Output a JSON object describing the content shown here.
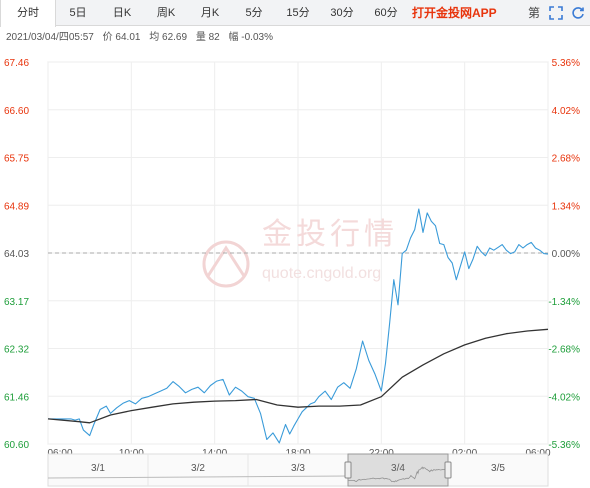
{
  "tabs": [
    {
      "label": "分时",
      "active": true
    },
    {
      "label": "5日"
    },
    {
      "label": "日K"
    },
    {
      "label": "周K"
    },
    {
      "label": "月K"
    },
    {
      "label": "5分"
    },
    {
      "label": "15分"
    },
    {
      "label": "30分"
    },
    {
      "label": "60分"
    }
  ],
  "app_link": "打开金投网APP",
  "toolbar": {
    "fn_label": "第"
  },
  "info": {
    "datetime": "2021/03/04/四05:57",
    "price": "价 64.01",
    "avg": "均 62.69",
    "volume": "量 82",
    "change": "幅 -0.03%"
  },
  "watermark": {
    "cn": "金投行情",
    "en": "quote.cngold.org"
  },
  "colors": {
    "up": "#e8340c",
    "down": "#1e9e3a",
    "price_line": "#3a9bd9",
    "avg_line": "#333333",
    "ref_line": "#aaaaaa"
  },
  "chart_data": {
    "type": "line",
    "y_ticks_left": [
      "67.46",
      "66.60",
      "65.75",
      "64.89",
      "64.03",
      "63.17",
      "62.32",
      "61.46",
      "60.60"
    ],
    "y_ticks_right": [
      "5.36%",
      "4.02%",
      "2.68%",
      "1.34%",
      "0.00%",
      "-1.34%",
      "-2.68%",
      "-4.02%",
      "-5.36%"
    ],
    "ylim": [
      60.6,
      67.46
    ],
    "reference_price": 64.03,
    "x_ticks": [
      "06:00",
      "10:00",
      "14:00",
      "18:00",
      "22:00",
      "02:00",
      "06:00"
    ],
    "x_tick_hours": [
      0,
      4,
      8,
      12,
      16,
      20,
      24
    ],
    "session_start": "06:00",
    "series": [
      {
        "role": "price",
        "x": [
          0,
          0.4,
          0.8,
          1.1,
          1.3,
          1.5,
          1.7,
          2.0,
          2.2,
          2.5,
          2.8,
          3.0,
          3.3,
          3.6,
          3.9,
          4.2,
          4.5,
          4.8,
          5.1,
          5.4,
          5.7,
          6.0,
          6.3,
          6.6,
          6.9,
          7.2,
          7.5,
          7.8,
          8.1,
          8.4,
          8.7,
          9.0,
          9.3,
          9.6,
          9.9,
          10.2,
          10.5,
          10.8,
          11.1,
          11.4,
          11.6,
          11.8,
          12.0,
          12.2,
          12.4,
          12.6,
          12.8,
          13.0,
          13.3,
          13.6,
          13.9,
          14.2,
          14.5,
          14.8,
          15.1,
          15.4,
          15.7,
          16.0,
          16.2,
          16.4,
          16.6,
          16.8,
          17.0,
          17.2,
          17.4,
          17.6,
          17.8,
          18.0,
          18.2,
          18.4,
          18.6,
          18.8,
          19.0,
          19.2,
          19.4,
          19.6,
          19.8,
          20.0,
          20.2,
          20.4,
          20.6,
          20.8,
          21.0,
          21.2,
          21.4,
          21.6,
          21.8,
          22.0,
          22.2,
          22.4,
          22.6,
          22.8,
          23.0,
          23.2,
          23.4,
          23.6,
          23.8,
          24.0
        ],
        "values": [
          61.05,
          61.05,
          61.05,
          61.05,
          61.03,
          61.05,
          60.85,
          60.75,
          60.95,
          61.22,
          61.28,
          61.15,
          61.25,
          61.33,
          61.38,
          61.32,
          61.42,
          61.45,
          61.5,
          61.55,
          61.6,
          61.72,
          61.63,
          61.52,
          61.58,
          61.62,
          61.52,
          61.65,
          61.73,
          61.76,
          61.48,
          61.62,
          61.55,
          61.45,
          61.42,
          61.15,
          60.68,
          60.8,
          60.62,
          60.95,
          60.78,
          60.92,
          61.05,
          61.18,
          61.25,
          61.32,
          61.35,
          61.45,
          61.55,
          61.4,
          61.62,
          61.7,
          61.6,
          61.95,
          62.45,
          62.1,
          61.85,
          61.55,
          62.05,
          62.78,
          63.55,
          63.1,
          64.02,
          64.08,
          64.3,
          64.45,
          64.82,
          64.4,
          64.75,
          64.6,
          64.52,
          64.2,
          64.18,
          63.95,
          63.85,
          63.55,
          63.8,
          64.05,
          63.75,
          63.92,
          64.15,
          64.05,
          63.98,
          64.12,
          64.08,
          64.13,
          64.18,
          64.08,
          64.02,
          64.05,
          64.18,
          64.12,
          64.18,
          64.22,
          64.12,
          64.08,
          64.02,
          64.01
        ]
      },
      {
        "role": "average",
        "x": [
          0,
          1.5,
          2,
          3,
          4,
          5,
          6,
          7,
          8,
          9,
          10,
          11,
          12,
          13,
          14,
          15,
          16,
          17,
          18,
          19,
          20,
          21,
          22,
          23,
          24
        ],
        "values": [
          61.05,
          61.0,
          60.98,
          61.12,
          61.2,
          61.26,
          61.32,
          61.35,
          61.37,
          61.38,
          61.4,
          61.3,
          61.26,
          61.28,
          61.28,
          61.3,
          61.45,
          61.8,
          62.02,
          62.22,
          62.38,
          62.5,
          62.58,
          62.63,
          62.66
        ]
      }
    ],
    "navigator": {
      "labels": [
        "3/1",
        "3/2",
        "3/3",
        "3/4",
        "3/5"
      ]
    }
  }
}
